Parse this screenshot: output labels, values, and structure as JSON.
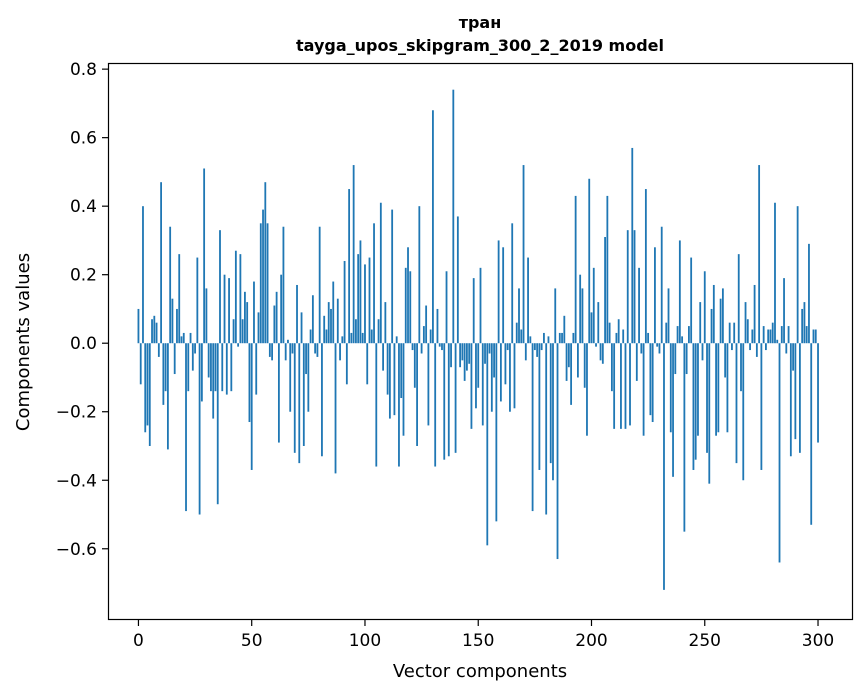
{
  "chart_data": {
    "type": "bar",
    "title": "тран",
    "subtitle": "tayga_upos_skipgram_300_2_2019 model",
    "xlabel": "Vector components",
    "ylabel": "Components values",
    "xlim": [
      -13,
      315
    ],
    "ylim": [
      -0.805,
      0.815
    ],
    "xticks": [
      0,
      50,
      100,
      150,
      200,
      250,
      300
    ],
    "xtick_labels": [
      "0",
      "50",
      "100",
      "150",
      "200",
      "250",
      "300"
    ],
    "yticks": [
      -0.6,
      -0.4,
      -0.2,
      0.0,
      0.2,
      0.4,
      0.6,
      0.8
    ],
    "ytick_labels": [
      "−0.6",
      "−0.4",
      "−0.2",
      "0.0",
      "0.2",
      "0.4",
      "0.6",
      "0.8"
    ],
    "grid": false,
    "color": "#1f77b4",
    "x_start": 0,
    "values": [
      0.1,
      -0.12,
      0.4,
      -0.26,
      -0.24,
      -0.3,
      0.07,
      0.08,
      0.06,
      -0.04,
      0.47,
      -0.18,
      -0.14,
      -0.31,
      0.34,
      0.13,
      -0.09,
      0.1,
      0.26,
      0.02,
      0.03,
      -0.49,
      -0.14,
      0.03,
      -0.08,
      -0.03,
      0.25,
      -0.5,
      -0.17,
      0.51,
      0.16,
      -0.1,
      -0.14,
      -0.22,
      -0.14,
      -0.47,
      0.33,
      -0.14,
      0.2,
      -0.15,
      0.19,
      -0.14,
      0.07,
      0.27,
      -0.01,
      0.26,
      0.07,
      0.15,
      0.12,
      -0.23,
      -0.37,
      0.18,
      -0.15,
      0.09,
      0.35,
      0.39,
      0.47,
      0.35,
      -0.04,
      -0.05,
      0.11,
      0.15,
      -0.29,
      0.2,
      0.34,
      -0.05,
      0.01,
      -0.2,
      -0.03,
      -0.32,
      0.17,
      -0.35,
      0.09,
      -0.3,
      -0.09,
      -0.2,
      0.04,
      0.14,
      -0.03,
      -0.04,
      0.34,
      -0.33,
      0.08,
      0.04,
      0.12,
      0.1,
      0.18,
      -0.38,
      0.13,
      -0.05,
      0.02,
      0.24,
      -0.12,
      0.45,
      0.03,
      0.52,
      0.07,
      0.26,
      0.3,
      0.03,
      0.23,
      -0.12,
      0.25,
      0.04,
      0.35,
      -0.36,
      0.07,
      0.41,
      -0.08,
      0.12,
      -0.15,
      -0.22,
      0.39,
      -0.21,
      0.02,
      -0.36,
      -0.16,
      -0.27,
      0.22,
      0.28,
      0.21,
      -0.02,
      -0.13,
      -0.3,
      0.4,
      -0.03,
      0.05,
      0.11,
      -0.24,
      0.04,
      0.68,
      -0.36,
      0.1,
      -0.01,
      -0.02,
      -0.34,
      0.21,
      -0.33,
      -0.07,
      0.74,
      -0.32,
      0.37,
      -0.07,
      -0.05,
      -0.11,
      -0.08,
      -0.06,
      -0.25,
      0.19,
      -0.19,
      -0.13,
      0.22,
      -0.24,
      -0.06,
      -0.59,
      -0.03,
      -0.2,
      -0.1,
      -0.52,
      0.3,
      -0.17,
      0.28,
      -0.12,
      -0.02,
      -0.2,
      0.35,
      -0.19,
      0.06,
      0.16,
      0.04,
      0.52,
      -0.05,
      0.25,
      0.02,
      -0.49,
      -0.02,
      -0.04,
      -0.37,
      -0.02,
      0.03,
      -0.5,
      0.02,
      -0.35,
      -0.4,
      0.16,
      -0.63,
      0.03,
      0.03,
      0.08,
      -0.11,
      -0.07,
      -0.18,
      0.03,
      0.43,
      -0.1,
      0.2,
      0.16,
      -0.13,
      -0.27,
      0.48,
      0.09,
      0.22,
      -0.01,
      0.12,
      -0.05,
      -0.06,
      0.31,
      0.43,
      0.06,
      -0.14,
      -0.25,
      0.03,
      0.07,
      -0.25,
      0.04,
      -0.25,
      0.33,
      -0.24,
      0.57,
      0.33,
      -0.11,
      0.22,
      -0.03,
      -0.27,
      0.45,
      0.03,
      -0.21,
      -0.23,
      0.28,
      -0.01,
      -0.03,
      0.34,
      -0.72,
      0.06,
      0.16,
      -0.26,
      -0.39,
      -0.09,
      0.05,
      0.3,
      0.02,
      -0.55,
      -0.09,
      0.05,
      0.25,
      -0.37,
      -0.34,
      -0.27,
      0.12,
      -0.05,
      0.21,
      -0.32,
      -0.41,
      0.1,
      0.17,
      -0.27,
      -0.26,
      0.13,
      0.16,
      -0.1,
      -0.26,
      0.06,
      -0.02,
      0.06,
      -0.35,
      0.26,
      -0.14,
      -0.4,
      0.12,
      0.07,
      -0.02,
      0.04,
      0.17,
      -0.04,
      0.52,
      -0.37,
      0.05,
      -0.02,
      0.04,
      0.04,
      0.06,
      0.41,
      0.01,
      -0.64,
      0.05,
      0.19,
      -0.03,
      0.05,
      -0.33,
      -0.08,
      -0.28,
      0.4,
      -0.32,
      0.1,
      0.12,
      0.05,
      0.29,
      -0.53,
      0.04,
      0.04,
      -0.29
    ]
  }
}
